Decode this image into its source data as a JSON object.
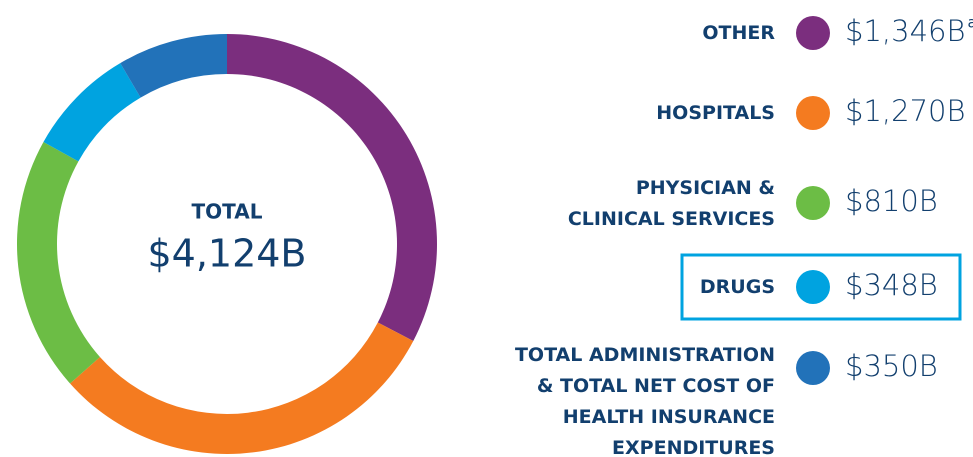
{
  "chart_data": {
    "type": "pie",
    "center_label": "TOTAL",
    "center_value": "$4,124B",
    "categories": [
      "OTHER",
      "HOSPITALS",
      "PHYSICIAN &\nCLINICAL SERVICES",
      "DRUGS",
      "TOTAL ADMINISTRATION\n& TOTAL NET COST OF\nHEALTH INSURANCE\nEXPENDITURES"
    ],
    "values": [
      1346,
      1270,
      810,
      348,
      350
    ],
    "value_labels": [
      "$1,346B",
      "$1,270B",
      "$810B",
      "$348B",
      "$350B"
    ],
    "superscripts": [
      "a",
      null,
      null,
      null,
      null
    ],
    "colors": [
      "#7b2e7e",
      "#f47b20",
      "#6cbd45",
      "#00a3e0",
      "#2272b9"
    ],
    "highlight": "DRUGS"
  }
}
